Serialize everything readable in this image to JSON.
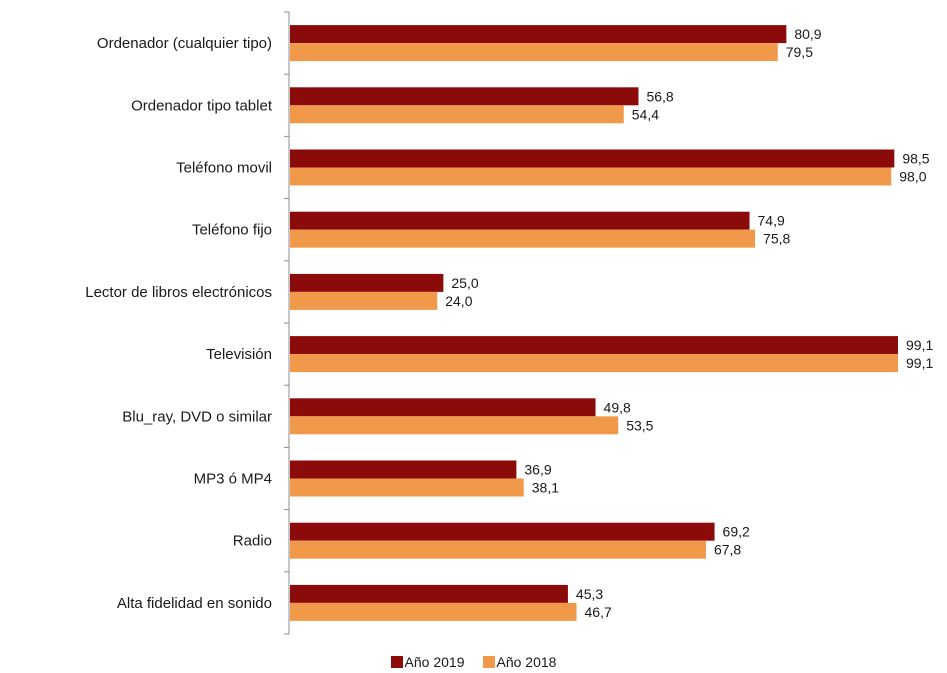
{
  "chart_data": {
    "type": "bar",
    "orientation": "horizontal",
    "categories": [
      "Ordenador (cualquier tipo)",
      "Ordenador tipo tablet",
      "Teléfono movil",
      "Teléfono fijo",
      "Lector de libros electrónicos",
      "Televisión",
      "Blu_ray, DVD o similar",
      "MP3 ó MP4",
      "Radio",
      "Alta fidelidad en sonido"
    ],
    "series": [
      {
        "name": "Año 2019",
        "color": "#8b0a0a",
        "values": [
          80.9,
          56.8,
          98.5,
          74.9,
          25.0,
          99.1,
          49.8,
          36.9,
          69.2,
          45.3
        ],
        "labels": [
          "80,9",
          "56,8",
          "98,5",
          "74,9",
          "25,0",
          "99,1",
          "49,8",
          "36,9",
          "69,2",
          "45,3"
        ]
      },
      {
        "name": "Año 2018",
        "color": "#f0994a",
        "values": [
          79.5,
          54.4,
          98.0,
          75.8,
          24.0,
          99.1,
          53.5,
          38.1,
          67.8,
          46.7
        ],
        "labels": [
          "79,5",
          "54,4",
          "98,0",
          "75,8",
          "24,0",
          "99,1",
          "53,5",
          "38,1",
          "67,8",
          "46,7"
        ]
      }
    ],
    "xlim": [
      0,
      100
    ],
    "grid": false,
    "legend_position": "bottom"
  }
}
